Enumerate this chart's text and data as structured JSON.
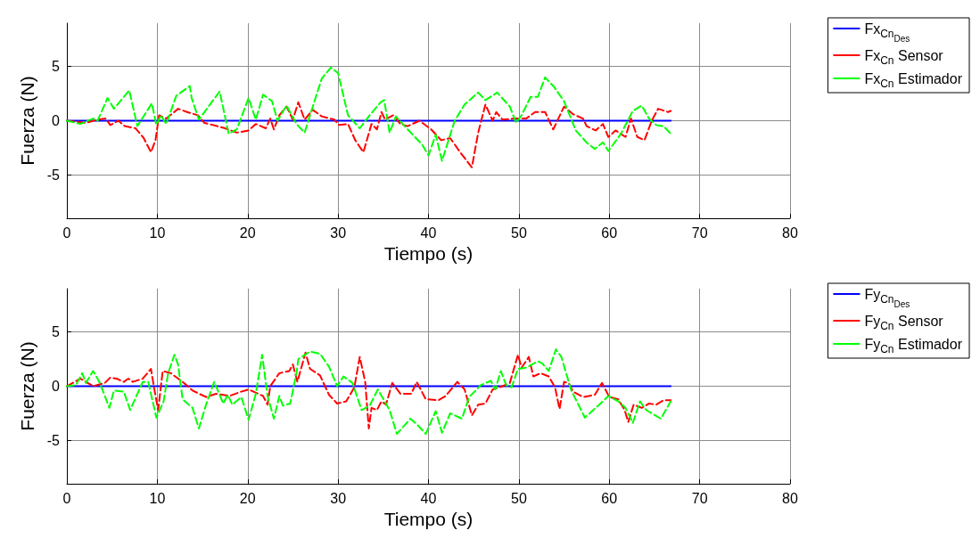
{
  "chart_data": [
    {
      "type": "line",
      "xlabel": "Tiempo (s)",
      "ylabel": "Fuerza (N)",
      "xlim": [
        0,
        80
      ],
      "xticks": [
        0,
        10,
        20,
        30,
        40,
        50,
        60,
        70,
        80
      ],
      "ylim": [
        -9,
        9
      ],
      "yticks": [
        -5,
        0,
        5
      ],
      "grid": true,
      "legend": "top right",
      "marker": "none",
      "series": [
        {
          "name": "Fx$_{Cn}$$_{Des}$",
          "color": "#0000ff",
          "line_style": "solid",
          "x": [
            0,
            66.8
          ],
          "values": [
            0,
            0
          ]
        },
        {
          "name": "Fx$_{Cn}$ Sensor",
          "color": "#ff0000",
          "line_style": "dashed",
          "x": [
            0,
            2.1,
            3.4,
            4.3,
            4.8,
            5.7,
            6.4,
            7.6,
            8.5,
            9.3,
            9.8,
            10.2,
            11,
            12.3,
            13.3,
            14.5,
            15.2,
            16.2,
            17.5,
            18.8,
            20.1,
            20.9,
            22,
            22.5,
            22.9,
            23.5,
            24.3,
            25,
            25.6,
            26.3,
            27.2,
            28.2,
            29.6,
            30.1,
            31.1,
            31.9,
            32.8,
            33.7,
            34.3,
            34.8,
            35.2,
            36.1,
            36.9,
            37.7,
            39,
            40.3,
            41.4,
            42.4,
            43.5,
            44.8,
            45.5,
            46.3,
            47.1,
            47.5,
            48.2,
            49.5,
            50.8,
            51.8,
            52.9,
            53.8,
            55,
            56,
            57.1,
            57.5,
            58.5,
            59.3,
            59.9,
            60.7,
            61.8,
            62.4,
            63.1,
            63.9,
            64.7,
            65.4,
            66.5,
            66.8
          ],
          "values": [
            0,
            -0.2,
            0.1,
            0.2,
            -0.4,
            0,
            -0.5,
            -0.7,
            -1.6,
            -2.9,
            -1.8,
            0.5,
            0.2,
            1.1,
            0.8,
            0.5,
            -0.2,
            -0.4,
            -0.7,
            -1.1,
            -0.9,
            -0.3,
            -0.7,
            0.2,
            -0.8,
            0.5,
            1.3,
            0.1,
            1.7,
            0.1,
            1,
            0.4,
            0.1,
            -0.4,
            -0.3,
            -1.8,
            -2.9,
            -0.3,
            -0.8,
            0.8,
            0.1,
            0.5,
            -0.3,
            -0.5,
            0,
            -0.8,
            -1.8,
            -1.6,
            -2.9,
            -4.3,
            -1.1,
            1.5,
            0,
            0.8,
            0.1,
            0.2,
            0.2,
            0.8,
            0.8,
            -0.8,
            1.3,
            0.6,
            0.2,
            -0.5,
            -0.9,
            -0.3,
            -1.5,
            -0.9,
            -1.5,
            0.2,
            -1.5,
            -1.8,
            0,
            1.1,
            0.8,
            0.9
          ]
        },
        {
          "name": "Fx$_{Cn}$ Estimador",
          "color": "#00ff00",
          "line_style": "dashed",
          "x": [
            0,
            1.5,
            2.9,
            3.4,
            4.5,
            5.2,
            6.9,
            7.8,
            9.4,
            9.9,
            10.4,
            11,
            12.1,
            13.6,
            13.8,
            14.6,
            16.9,
            17.9,
            18.8,
            20.1,
            20.9,
            21.7,
            22.7,
            23.3,
            24.3,
            25.4,
            26.3,
            27.2,
            28.2,
            29.2,
            30,
            31.1,
            32.4,
            33.5,
            34.7,
            35.1,
            35.7,
            36.4,
            37.7,
            39.3,
            40,
            40.8,
            41.5,
            42.9,
            44,
            45.5,
            46.3,
            47.6,
            49,
            49.7,
            50.3,
            51.3,
            52.1,
            52.9,
            53.9,
            55,
            56.3,
            57.6,
            58.4,
            59.3,
            59.9,
            61.3,
            62.6,
            63.6,
            64.4,
            65.2,
            66,
            66.8
          ],
          "values": [
            0,
            -0.3,
            0.2,
            0,
            2.1,
            1.1,
            2.8,
            -0.5,
            1.6,
            -0.4,
            0.5,
            -0.3,
            2.3,
            3.2,
            2.1,
            0.1,
            2.7,
            -1.2,
            -0.8,
            2.1,
            0.1,
            2.4,
            1.8,
            0,
            1.4,
            -0.3,
            -1.1,
            1.3,
            3.9,
            4.9,
            4.4,
            0.5,
            -0.7,
            0.5,
            1.7,
            1.9,
            -1.1,
            0.4,
            -0.8,
            -2.2,
            -3.2,
            -1.3,
            -3.7,
            0,
            1.5,
            2.6,
            1.9,
            2.6,
            1.3,
            -0.2,
            0.5,
            2.2,
            2.2,
            4,
            3.1,
            1.8,
            -0.9,
            -2.1,
            -2.6,
            -2,
            -2.8,
            -1.2,
            0.9,
            1.4,
            0.2,
            -0.4,
            -0.5,
            -1.2
          ]
        }
      ]
    },
    {
      "type": "line",
      "xlabel": "Tiempo (s)",
      "ylabel": "Fuerza (N)",
      "xlim": [
        0,
        80
      ],
      "xticks": [
        0,
        10,
        20,
        30,
        40,
        50,
        60,
        70,
        80
      ],
      "ylim": [
        -9,
        9
      ],
      "yticks": [
        -5,
        0,
        5
      ],
      "grid": true,
      "legend": "top right",
      "marker": "none",
      "series": [
        {
          "name": "Fy$_{Cn}$$_{Des}$",
          "color": "#0000ff",
          "line_style": "solid",
          "x": [
            0,
            66.8
          ],
          "values": [
            0,
            0
          ]
        },
        {
          "name": "Fy$_{Cn}$ Sensor",
          "color": "#ff0000",
          "line_style": "dashed",
          "x": [
            0,
            1.5,
            2.9,
            4.2,
            4.8,
            5.5,
            6.3,
            6.8,
            7.3,
            8.4,
            9.3,
            9.7,
            10.1,
            10.6,
            11.5,
            12.8,
            13.9,
            15.4,
            16.5,
            18,
            19.3,
            20.1,
            21.7,
            22.2,
            22.5,
            23.5,
            24.6,
            25,
            25.5,
            26.4,
            26.9,
            28,
            29,
            29.9,
            30.9,
            31.8,
            32.4,
            33,
            33.4,
            33.7,
            34.3,
            34.8,
            35.3,
            36,
            36.9,
            38.1,
            38.7,
            39.7,
            41.1,
            41.9,
            43.2,
            44,
            44.8,
            45.5,
            46.3,
            47.1,
            48.2,
            49,
            49.9,
            50.3,
            51.1,
            51.6,
            52.4,
            53.3,
            54,
            54.5,
            55,
            55.5,
            56,
            57.1,
            58.4,
            59.2,
            60,
            61,
            61.7,
            62.1,
            62.7,
            63.6,
            64.4,
            65.2,
            66,
            66.8
          ],
          "values": [
            0,
            0.7,
            0,
            0.3,
            0.8,
            0.7,
            0.4,
            0.7,
            0.4,
            0.7,
            1.6,
            -0.4,
            -2.2,
            1.4,
            1.2,
            0.4,
            -0.4,
            -1,
            -0.7,
            -0.9,
            -0.5,
            -0.3,
            -0.9,
            -1.7,
            0,
            1.2,
            1.4,
            2,
            0.4,
            3.1,
            1.6,
            1,
            -0.8,
            -1.6,
            -1.4,
            -0.1,
            2.7,
            0.4,
            -3.9,
            -2,
            -2.2,
            -1.4,
            -1.7,
            0.3,
            -0.7,
            -0.7,
            0.4,
            -1.2,
            -1.3,
            -0.9,
            0.4,
            -0.3,
            -2.7,
            -1.7,
            -1.6,
            -0.3,
            0,
            0.3,
            2.9,
            1.7,
            2.7,
            0.9,
            1.2,
            0.9,
            -0.1,
            -2.1,
            0.4,
            0.3,
            -0.5,
            -1,
            -0.8,
            0.3,
            -1,
            -1.2,
            -2.2,
            -3.3,
            -1.7,
            -2,
            -1.6,
            -1.7,
            -1.3,
            -1.3
          ]
        },
        {
          "name": "Fy$_{Cn}$ Estimador",
          "color": "#00ff00",
          "line_style": "dashed",
          "x": [
            0,
            1,
            1.7,
            2.1,
            2.9,
            3.6,
            4.7,
            5.2,
            6.3,
            7,
            8.4,
            9,
            9.9,
            10.7,
            11.2,
            11.9,
            12.3,
            12.8,
            13.9,
            14.6,
            15.4,
            16.3,
            17.3,
            17.8,
            18.3,
            19.3,
            20.1,
            20.9,
            21.6,
            22.2,
            22.9,
            23.5,
            23.9,
            24.7,
            25.4,
            25.6,
            26.9,
            28,
            29,
            29.9,
            30.6,
            31.6,
            32.6,
            33.5,
            34.4,
            35.7,
            36.5,
            38,
            38.7,
            39.7,
            40.8,
            41.5,
            42.4,
            43.7,
            44.5,
            45.8,
            46.9,
            47.4,
            48,
            48.6,
            49.2,
            49.9,
            50.8,
            52.1,
            52.6,
            53.3,
            54.1,
            54.7,
            55.8,
            57.3,
            58.9,
            59.9,
            61,
            61.8,
            62.6,
            63.4,
            64.1,
            65.7,
            66.8
          ],
          "values": [
            0,
            0.1,
            1.2,
            0.3,
            1.4,
            0.4,
            -2,
            -0.4,
            -0.5,
            -2.2,
            0.4,
            0.4,
            -2.9,
            -1.4,
            1.2,
            2.9,
            2,
            -1.2,
            -2,
            -3.9,
            -1.7,
            0.4,
            -1.6,
            -0.8,
            -1.7,
            -1,
            -3.1,
            -0.7,
            2.9,
            -0.9,
            -3,
            -0.9,
            -1.8,
            -1.6,
            1.2,
            2.5,
            3.2,
            3,
            1.8,
            0,
            0.9,
            0.3,
            -2.2,
            -1.8,
            -0.3,
            -2.2,
            -4.4,
            -3,
            -3.5,
            -4.4,
            -2.3,
            -4.3,
            -2.5,
            -3,
            -1,
            0.1,
            0.5,
            -0.3,
            1.4,
            0.1,
            -0.1,
            1.6,
            1.7,
            2.3,
            2.1,
            1.4,
            3.4,
            2.7,
            -0.4,
            -2.9,
            -1.7,
            -0.9,
            -1.4,
            -2,
            -3.4,
            -1.4,
            -2.2,
            -3,
            -1.4
          ]
        }
      ]
    }
  ]
}
